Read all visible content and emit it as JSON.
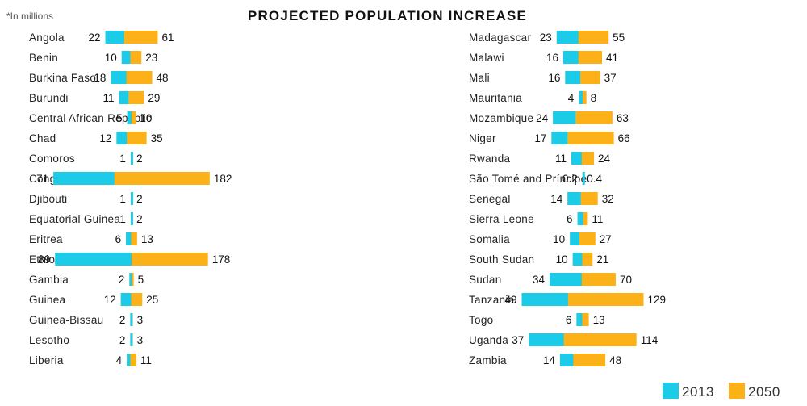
{
  "note": "*In millions",
  "chart_data": {
    "type": "bar",
    "title": "PROJECTED POPULATION INCREASE",
    "unit_note": "*In millions",
    "legend": [
      {
        "name": "2013",
        "color": "#1ccbe8"
      },
      {
        "name": "2050",
        "color": "#fbb117"
      }
    ],
    "legend_placement": "bottom-right",
    "grid": false,
    "panels": [
      {
        "categories": [
          "Angola",
          "Benin",
          "Burkina Faso",
          "Burundi",
          "Central African Republic",
          "Chad",
          "Comoros",
          "Congo, Dem. Rep.",
          "Djibouti",
          "Equatorial Guinea",
          "Eritrea",
          "Ethiopia",
          "Gambia",
          "Guinea",
          "Guinea-Bissau",
          "Lesotho",
          "Liberia"
        ],
        "series": [
          {
            "name": "2013",
            "values": [
              22,
              10,
              18,
              11,
              5,
              12,
              1,
              71,
              1,
              1,
              6,
              89,
              2,
              12,
              2,
              2,
              4
            ]
          },
          {
            "name": "2050",
            "values": [
              61,
              23,
              48,
              29,
              10,
              35,
              2,
              182,
              2,
              2,
              13,
              178,
              5,
              25,
              3,
              3,
              11
            ]
          }
        ]
      },
      {
        "categories": [
          "Madagascar",
          "Malawi",
          "Mali",
          "Mauritania",
          "Mozambique",
          "Niger",
          "Rwanda",
          "São Tomé and Príncipe",
          "Senegal",
          "Sierra Leone",
          "Somalia",
          "South Sudan",
          "Sudan",
          "Tanzania",
          "Togo",
          "Uganda",
          "Zambia"
        ],
        "series": [
          {
            "name": "2013",
            "values": [
              23,
              16,
              16,
              4,
              24,
              17,
              11,
              0.2,
              14,
              6,
              10,
              10,
              34,
              49,
              6,
              37,
              14
            ]
          },
          {
            "name": "2050",
            "values": [
              55,
              41,
              37,
              8,
              63,
              66,
              24,
              0.4,
              32,
              11,
              27,
              21,
              70,
              129,
              13,
              114,
              48
            ]
          }
        ]
      }
    ]
  }
}
